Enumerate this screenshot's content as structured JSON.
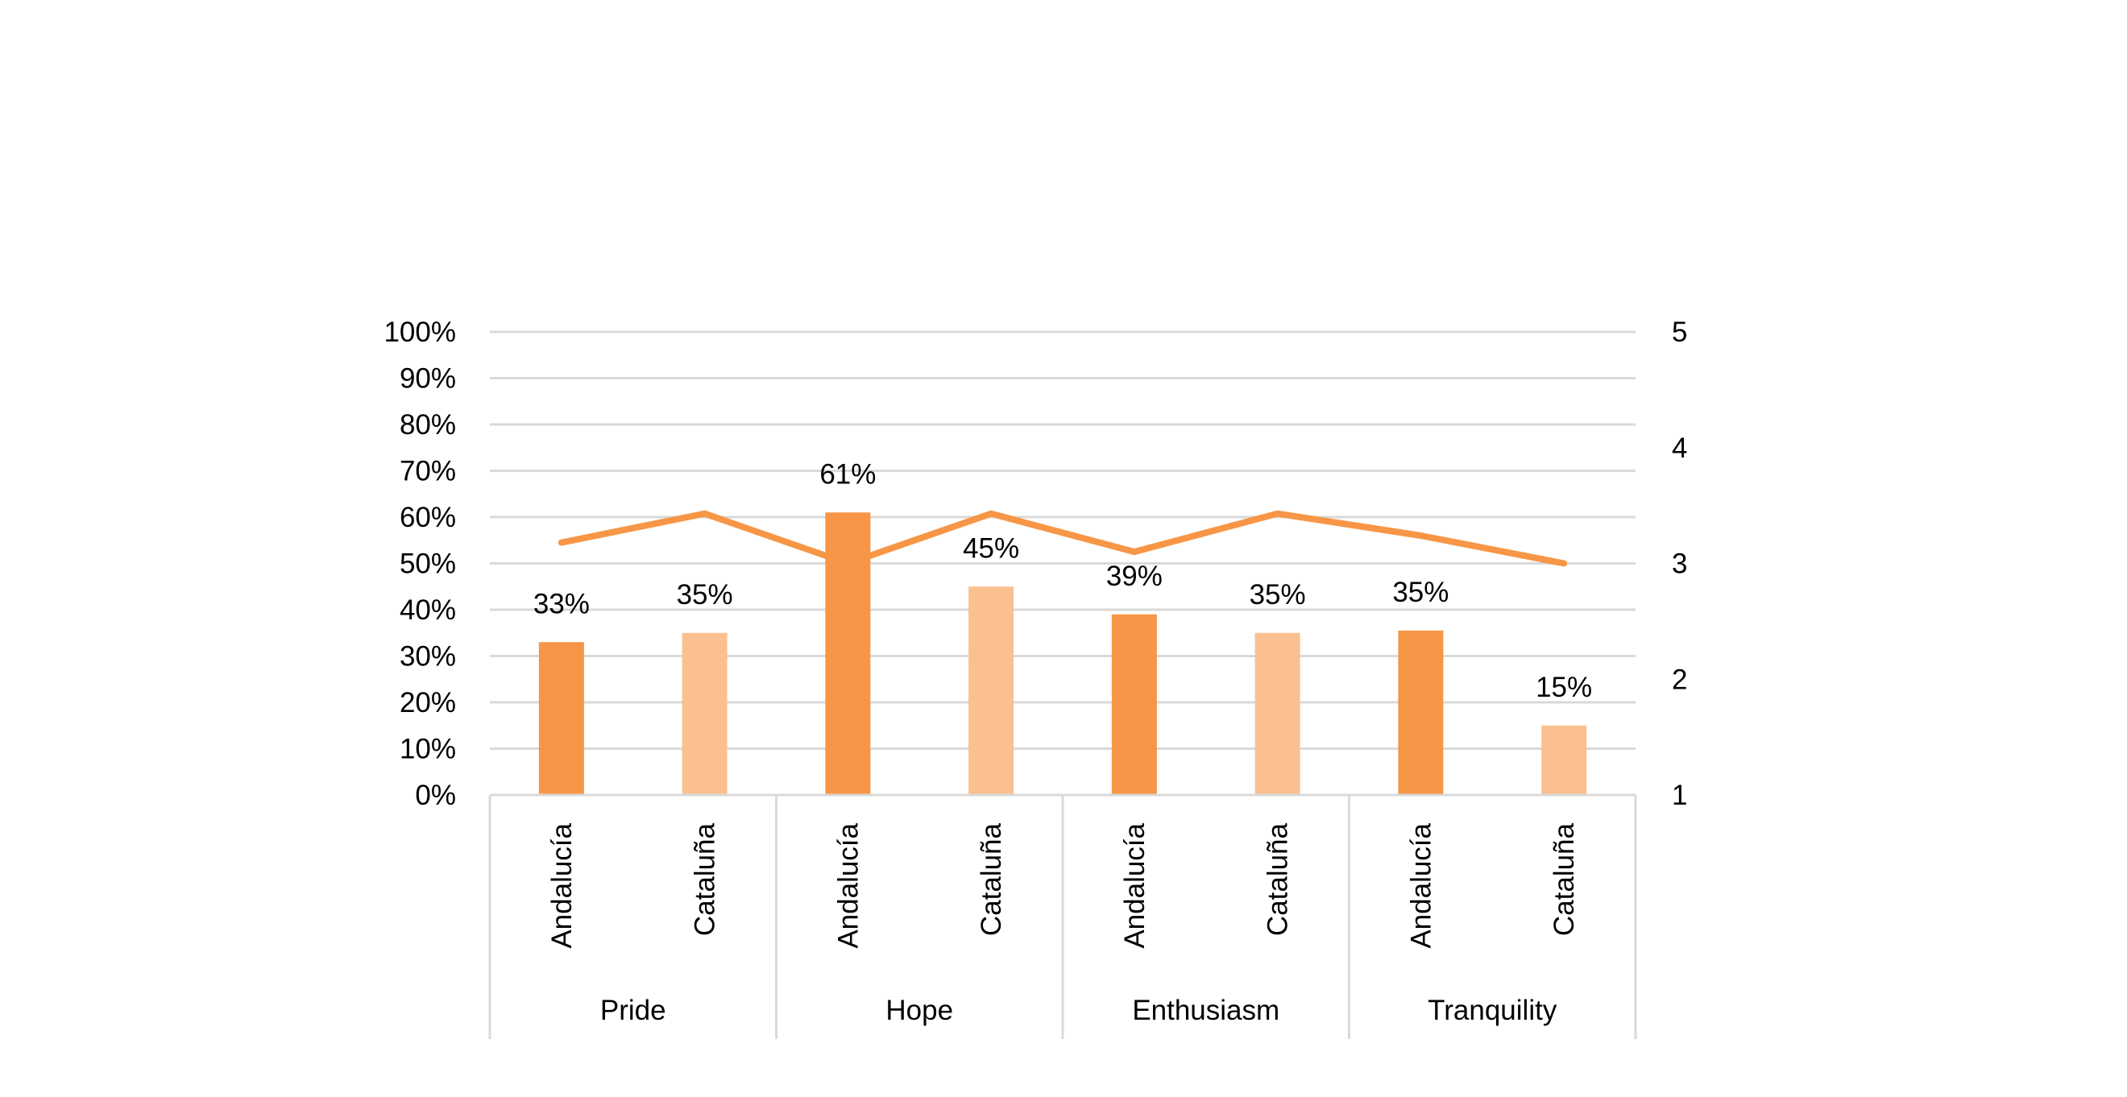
{
  "chart_data": {
    "type": "bar",
    "title": "",
    "groups": [
      "Pride",
      "Hope",
      "Enthusiasm",
      "Tranquility"
    ],
    "categories": [
      "Andalucía",
      "Cataluña",
      "Andalucía",
      "Cataluña",
      "Andalucía",
      "Cataluña",
      "Andalucía",
      "Cataluña"
    ],
    "bar_values": [
      0.33,
      0.35,
      0.61,
      0.45,
      0.39,
      0.35,
      0.355,
      0.15
    ],
    "bar_labels": [
      "33%",
      "35%",
      "61%",
      "45%",
      "39%",
      "35%",
      "35%",
      "15%"
    ],
    "bar_colors": [
      "#f79646",
      "#fac090",
      "#f79646",
      "#fac090",
      "#f79646",
      "#fac090",
      "#f79646",
      "#fac090"
    ],
    "line_series": {
      "type": "line",
      "axis": "secondary",
      "color": "#f79646",
      "values": [
        3.18,
        3.43,
        3.0,
        3.43,
        3.1,
        3.43,
        3.24,
        3.0
      ]
    },
    "y_primary": {
      "ylim": [
        0,
        1
      ],
      "ticks": [
        0,
        0.1,
        0.2,
        0.3,
        0.4,
        0.5,
        0.6,
        0.7,
        0.8,
        0.9,
        1.0
      ],
      "tick_labels": [
        "0%",
        "10%",
        "20%",
        "30%",
        "40%",
        "50%",
        "60%",
        "70%",
        "80%",
        "90%",
        "100%"
      ]
    },
    "y_secondary": {
      "ylim": [
        1,
        5
      ],
      "ticks": [
        1,
        2,
        3,
        4,
        5
      ],
      "tick_labels": [
        "1",
        "2",
        "3",
        "4",
        "5"
      ]
    },
    "xlabel": "",
    "ylabel": "",
    "grid": true,
    "legend": "none",
    "gridline_color": "#d9d9d9"
  }
}
